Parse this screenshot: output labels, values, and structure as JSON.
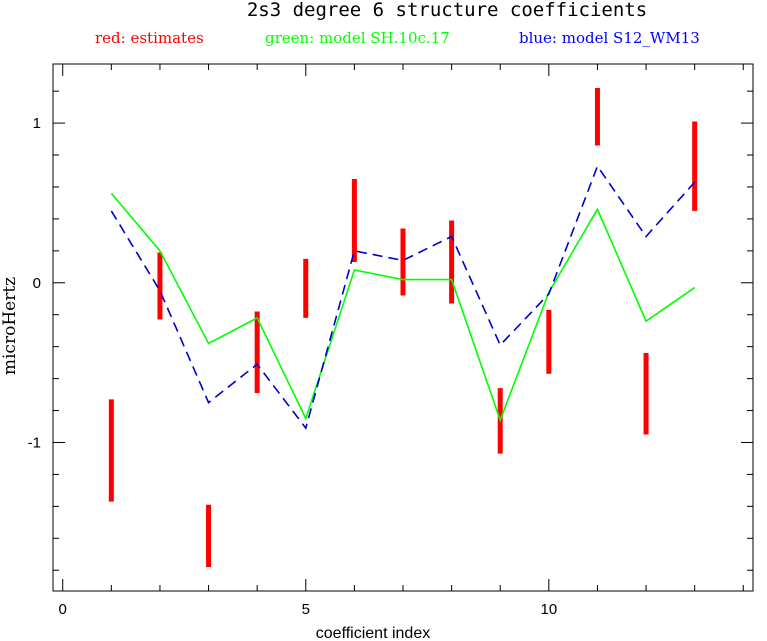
{
  "chart_data": {
    "type": "line",
    "title": "2s3 degree 6 structure coefficients",
    "xlabel": "coefficient index",
    "ylabel": "microHertz",
    "xlim": [
      -0.2,
      14.2
    ],
    "ylim": [
      -1.93,
      1.37
    ],
    "x_ticks": [
      0,
      5,
      10
    ],
    "y_ticks": [
      -1,
      0,
      1
    ],
    "grid": false,
    "legend_labels": [
      {
        "text": "red: estimates",
        "color": "#ff0000"
      },
      {
        "text": "green: model SH.10c.17",
        "color": "#00ff00"
      },
      {
        "text": "blue: model S12_WM13",
        "color": "#0000ff"
      }
    ],
    "x": [
      1,
      2,
      3,
      4,
      5,
      6,
      7,
      8,
      9,
      10,
      11,
      12,
      13
    ],
    "estimates": {
      "name": "red: estimates",
      "color": "#ff0000",
      "low": [
        -1.37,
        -0.23,
        -1.78,
        -0.69,
        -0.22,
        0.13,
        -0.08,
        -0.13,
        -1.07,
        -0.57,
        0.86,
        -0.95,
        0.45
      ],
      "high": [
        -0.73,
        0.19,
        -1.39,
        -0.18,
        0.15,
        0.65,
        0.34,
        0.39,
        -0.66,
        -0.17,
        1.22,
        -0.44,
        1.01
      ]
    },
    "series": [
      {
        "name": "green: model SH.10c.17",
        "color": "#00ff00",
        "dash": "solid",
        "values": [
          0.56,
          0.2,
          -0.38,
          -0.22,
          -0.85,
          0.08,
          0.02,
          0.02,
          -0.86,
          -0.06,
          0.46,
          -0.24,
          -0.03
        ]
      },
      {
        "name": "blue: model S12_WM13",
        "color": "#0000cc",
        "dash": "dashed",
        "values": [
          0.45,
          -0.05,
          -0.75,
          -0.51,
          -0.91,
          0.2,
          0.14,
          0.29,
          -0.39,
          -0.07,
          0.73,
          0.29,
          0.63
        ]
      }
    ]
  }
}
